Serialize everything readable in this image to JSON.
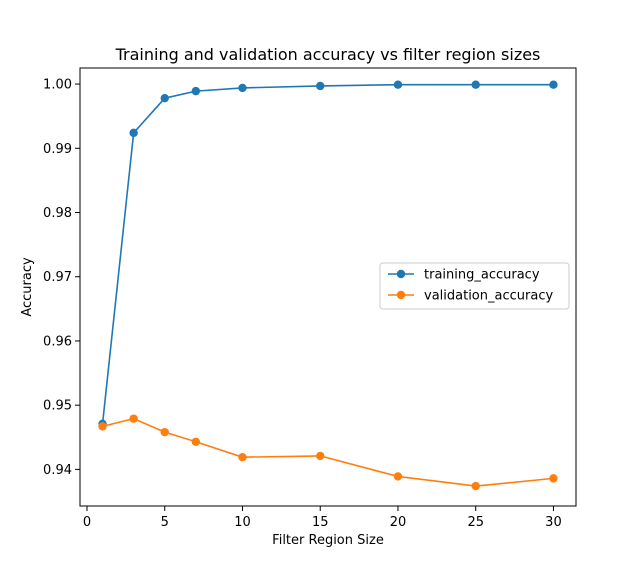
{
  "chart_data": {
    "type": "line",
    "title": "Training and validation accuracy vs filter region sizes",
    "xlabel": "Filter Region Size",
    "ylabel": "Accuracy",
    "x": [
      1,
      3,
      5,
      7,
      10,
      15,
      20,
      25,
      30
    ],
    "xlim": [
      -0.45,
      31.45
    ],
    "ylim": [
      0.9343,
      1.0025
    ],
    "xticks": [
      0,
      5,
      10,
      15,
      20,
      25,
      30
    ],
    "yticks": [
      0.94,
      0.95,
      0.96,
      0.97,
      0.98,
      0.99,
      1.0
    ],
    "ytick_labels": [
      "0.94",
      "0.95",
      "0.96",
      "0.97",
      "0.98",
      "0.99",
      "1.00"
    ],
    "grid": false,
    "legend_position": "center-right",
    "series": [
      {
        "name": "training_accuracy",
        "color": "#1f77b4",
        "marker": "circle",
        "values": [
          0.9471,
          0.9924,
          0.9978,
          0.9989,
          0.9994,
          0.9997,
          0.9999,
          0.9999,
          0.9999
        ]
      },
      {
        "name": "validation_accuracy",
        "color": "#ff7f0e",
        "marker": "circle",
        "values": [
          0.9467,
          0.9479,
          0.9458,
          0.9443,
          0.9419,
          0.9421,
          0.9389,
          0.9374,
          0.9386
        ]
      }
    ]
  }
}
